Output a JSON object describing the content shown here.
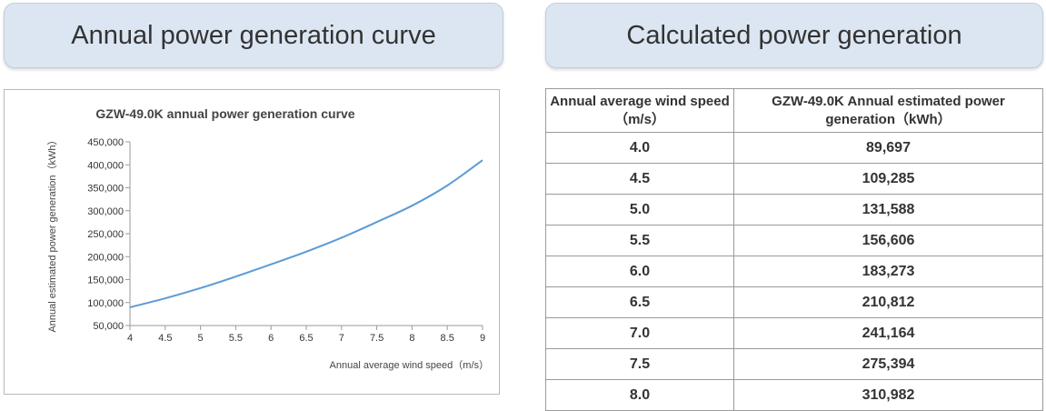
{
  "headers": {
    "left": "Annual power generation curve",
    "right": "Calculated power generation"
  },
  "table": {
    "col1_header": "Annual average wind speed（m/s）",
    "col2_header": "GZW-49.0K Annual estimated power generation（kWh）",
    "rows": [
      {
        "speed": "4.0",
        "power": "89,697"
      },
      {
        "speed": "4.5",
        "power": "109,285"
      },
      {
        "speed": "5.0",
        "power": "131,588"
      },
      {
        "speed": "5.5",
        "power": "156,606"
      },
      {
        "speed": "6.0",
        "power": "183,273"
      },
      {
        "speed": "6.5",
        "power": "210,812"
      },
      {
        "speed": "7.0",
        "power": "241,164"
      },
      {
        "speed": "7.5",
        "power": "275,394"
      },
      {
        "speed": "8.0",
        "power": "310,982"
      }
    ]
  },
  "chart_data": {
    "type": "line",
    "title": "GZW-49.0K annual power generation curve",
    "xlabel": "Annual average wind speed（m/s）",
    "ylabel": "Annual estimated power generation（kWh）",
    "xlim": [
      4,
      9
    ],
    "ylim": [
      50000,
      450000
    ],
    "xticks": [
      "4",
      "4.5",
      "5",
      "5.5",
      "6",
      "6.5",
      "7",
      "7.5",
      "8",
      "8.5",
      "9"
    ],
    "yticks": [
      "450,000",
      "400,000",
      "350,000",
      "300,000",
      "250,000",
      "200,000",
      "150,000",
      "100,000",
      "50,000"
    ],
    "grid": false,
    "line_color": "#5b9bd5",
    "series": [
      {
        "x": [
          4.0,
          4.5,
          5.0,
          5.5,
          6.0,
          6.5,
          7.0,
          7.5,
          8.0,
          8.5,
          9.0
        ],
        "values": [
          89697,
          109285,
          131588,
          156606,
          183273,
          210812,
          241164,
          275394,
          310982,
          355000,
          410000
        ]
      }
    ]
  }
}
